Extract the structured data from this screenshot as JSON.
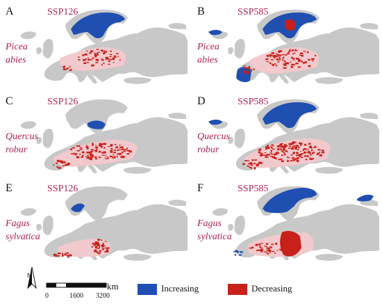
{
  "panels": [
    {
      "letter": "A",
      "scenario": "SSP126",
      "species": [
        "Picea",
        "abies"
      ]
    },
    {
      "letter": "B",
      "scenario": "SSP585",
      "species": [
        "Picea",
        "abies"
      ]
    },
    {
      "letter": "C",
      "scenario": "SSP126",
      "species": [
        "Quercus",
        "robur"
      ]
    },
    {
      "letter": "D",
      "scenario": "SSP585",
      "species": [
        "Quercus",
        "robur"
      ]
    },
    {
      "letter": "E",
      "scenario": "SSP126",
      "species": [
        "Fagus",
        "sylvatica"
      ]
    },
    {
      "letter": "F",
      "scenario": "SSP585",
      "species": [
        "Fagus",
        "sylvatica"
      ]
    }
  ],
  "legend": {
    "north_label": "N",
    "scale_unit": "km",
    "scale_ticks": [
      "0",
      "1600",
      "3200"
    ],
    "items": [
      {
        "label": "Increasing",
        "color": "#1f4fb0"
      },
      {
        "label": "Decreasing",
        "color": "#c8201a"
      }
    ]
  },
  "colors": {
    "land": "#c8c8c8",
    "range": "#f2c9cc",
    "increase": "#1f4fb0",
    "decrease": "#c8201a",
    "label": "#b0204a"
  }
}
